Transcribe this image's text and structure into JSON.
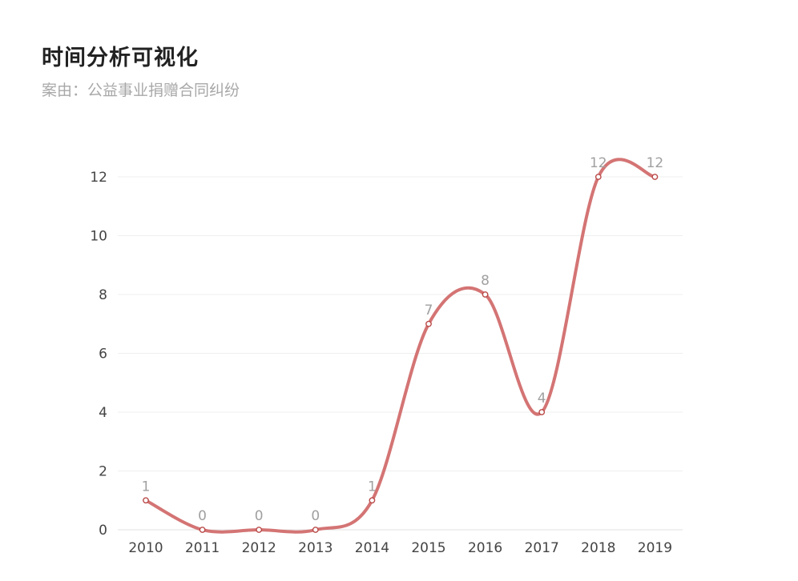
{
  "header": {
    "title": "时间分析可视化",
    "subtitle": "案由：公益事业捐赠合同纠纷"
  },
  "chart_data": {
    "type": "line",
    "categories": [
      "2010",
      "2011",
      "2012",
      "2013",
      "2014",
      "2015",
      "2016",
      "2017",
      "2018",
      "2019"
    ],
    "series": [
      {
        "values": [
          1,
          0,
          0,
          0,
          1,
          7,
          8,
          4,
          12,
          12
        ],
        "color": "#d47474",
        "smooth": true
      }
    ],
    "yticks": [
      0,
      2,
      4,
      6,
      8,
      10,
      12
    ],
    "ylim": [
      0,
      12
    ],
    "grid": true,
    "data_labels": true,
    "legend": "none"
  }
}
